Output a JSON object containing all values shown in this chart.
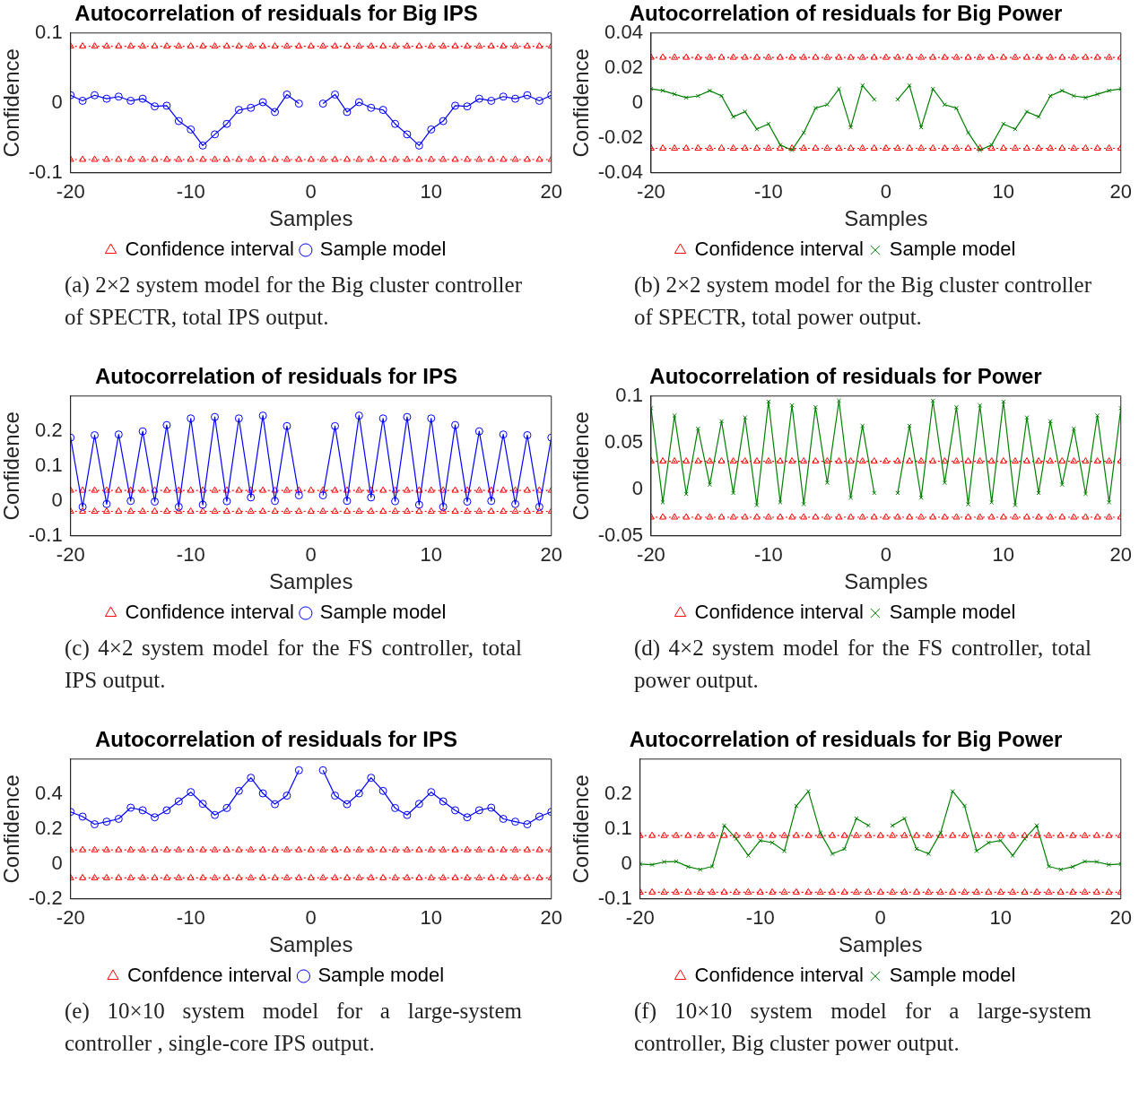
{
  "chart_data": [
    {
      "type": "line",
      "title": "Autocorrelation of residuals for Big IPS",
      "xlabel": "Samples",
      "ylabel": "Confidence",
      "x": [
        -20,
        -19,
        -18,
        -17,
        -16,
        -15,
        -14,
        -13,
        -12,
        -11,
        -10,
        -9,
        -8,
        -7,
        -6,
        -5,
        -4,
        -3,
        -2,
        -1,
        0,
        1,
        2,
        3,
        4,
        5,
        6,
        7,
        8,
        9,
        10,
        11,
        12,
        13,
        14,
        15,
        16,
        17,
        18,
        19,
        20
      ],
      "xlim": [
        -20,
        20
      ],
      "xticks": [
        -20,
        -10,
        0,
        10,
        20
      ],
      "ylim": [
        -0.1,
        0.1
      ],
      "yticks": [
        -0.1,
        0,
        0.1
      ],
      "grid": false,
      "legend": "bottom",
      "annotations": [
        "(a) 2×2 system model for the Big cluster controller of SPECTR, total IPS output."
      ],
      "series": [
        {
          "name": "Confidence interval",
          "color": "#ff0000",
          "marker": "triangle",
          "line_style": "dotted",
          "values": [
            -0.081,
            -0.081,
            -0.081,
            -0.081,
            -0.081,
            -0.081,
            -0.081,
            -0.081,
            -0.081,
            -0.081,
            -0.081,
            -0.081,
            -0.081,
            -0.081,
            -0.081,
            -0.081,
            -0.081,
            -0.081,
            -0.081,
            -0.081,
            -0.081,
            -0.081,
            -0.081,
            -0.081,
            -0.081,
            -0.081,
            -0.081,
            -0.081,
            -0.081,
            -0.081,
            -0.081,
            -0.081,
            -0.081,
            -0.081,
            -0.081,
            -0.081,
            -0.081,
            -0.081,
            -0.081,
            -0.081,
            -0.081
          ]
        },
        {
          "color": "#ff0000",
          "marker": "triangle",
          "line_style": "dotted",
          "values": [
            0.081,
            0.081,
            0.081,
            0.081,
            0.081,
            0.081,
            0.081,
            0.081,
            0.081,
            0.081,
            0.081,
            0.081,
            0.081,
            0.081,
            0.081,
            0.081,
            0.081,
            0.081,
            0.081,
            0.081,
            0.081,
            0.081,
            0.081,
            0.081,
            0.081,
            0.081,
            0.081,
            0.081,
            0.081,
            0.081,
            0.081,
            0.081,
            0.081,
            0.081,
            0.081,
            0.081,
            0.081,
            0.081,
            0.081,
            0.081,
            0.081
          ]
        },
        {
          "name": "Sample model",
          "color": "#0000ff",
          "marker": "circle",
          "line_style": "solid",
          "values": [
            0.011,
            0.003,
            0.011,
            0.006,
            0.009,
            0.003,
            0.006,
            -0.005,
            -0.004,
            -0.026,
            -0.038,
            -0.061,
            -0.045,
            -0.03,
            -0.01,
            -0.007,
            0.001,
            -0.013,
            0.012,
            -0.001,
            null,
            -0.001,
            0.012,
            -0.013,
            0.001,
            -0.007,
            -0.01,
            -0.03,
            -0.045,
            -0.061,
            -0.038,
            -0.026,
            -0.004,
            -0.005,
            0.006,
            0.003,
            0.009,
            0.006,
            0.011,
            0.003,
            0.011
          ]
        }
      ]
    },
    {
      "type": "line",
      "title": "Autocorrelation of residuals for Big Power",
      "xlabel": "Samples",
      "ylabel": "Confidence",
      "x": [
        -20,
        -19,
        -18,
        -17,
        -16,
        -15,
        -14,
        -13,
        -12,
        -11,
        -10,
        -9,
        -8,
        -7,
        -6,
        -5,
        -4,
        -3,
        -2,
        -1,
        0,
        1,
        2,
        3,
        4,
        5,
        6,
        7,
        8,
        9,
        10,
        11,
        12,
        13,
        14,
        15,
        16,
        17,
        18,
        19,
        20
      ],
      "xlim": [
        -20,
        20
      ],
      "xticks": [
        -20,
        -10,
        0,
        10,
        20
      ],
      "ylim": [
        -0.04,
        0.04
      ],
      "yticks": [
        -0.04,
        -0.02,
        0,
        0.02,
        0.04
      ],
      "grid": false,
      "legend": "bottom",
      "annotations": [
        "(b) 2×2 system model for the Big cluster controller of SPECTR, total power output."
      ],
      "series": [
        {
          "name": "Confidence interval",
          "color": "#ff0000",
          "marker": "triangle",
          "line_style": "dotted",
          "values": [
            -0.026,
            -0.026,
            -0.026,
            -0.026,
            -0.026,
            -0.026,
            -0.026,
            -0.026,
            -0.026,
            -0.026,
            -0.026,
            -0.026,
            -0.026,
            -0.026,
            -0.026,
            -0.026,
            -0.026,
            -0.026,
            -0.026,
            -0.026,
            -0.026,
            -0.026,
            -0.026,
            -0.026,
            -0.026,
            -0.026,
            -0.026,
            -0.026,
            -0.026,
            -0.026,
            -0.026,
            -0.026,
            -0.026,
            -0.026,
            -0.026,
            -0.026,
            -0.026,
            -0.026,
            -0.026,
            -0.026,
            -0.026
          ]
        },
        {
          "color": "#ff0000",
          "marker": "triangle",
          "line_style": "dotted",
          "values": [
            0.026,
            0.026,
            0.026,
            0.026,
            0.026,
            0.026,
            0.026,
            0.026,
            0.026,
            0.026,
            0.026,
            0.026,
            0.026,
            0.026,
            0.026,
            0.026,
            0.026,
            0.026,
            0.026,
            0.026,
            0.026,
            0.026,
            0.026,
            0.026,
            0.026,
            0.026,
            0.026,
            0.026,
            0.026,
            0.026,
            0.026,
            0.026,
            0.026,
            0.026,
            0.026,
            0.026,
            0.026,
            0.026,
            0.026,
            0.026,
            0.026
          ]
        },
        {
          "name": "Sample model",
          "color": "#008000",
          "marker": "cross",
          "line_style": "solid",
          "values": [
            0.008,
            0.007,
            0.005,
            0.003,
            0.004,
            0.007,
            0.004,
            -0.008,
            -0.005,
            -0.015,
            -0.012,
            -0.024,
            -0.027,
            -0.017,
            -0.003,
            -0.001,
            0.008,
            -0.014,
            0.01,
            0.002,
            null,
            0.002,
            0.01,
            -0.014,
            0.008,
            -0.001,
            -0.003,
            -0.017,
            -0.027,
            -0.024,
            -0.012,
            -0.015,
            -0.005,
            -0.008,
            0.004,
            0.007,
            0.004,
            0.003,
            0.005,
            0.007,
            0.008
          ]
        }
      ]
    },
    {
      "type": "line",
      "title": "Autocorrelation of residuals for IPS",
      "xlabel": "Samples",
      "ylabel": "Confidence",
      "x": [
        -20,
        -19,
        -18,
        -17,
        -16,
        -15,
        -14,
        -13,
        -12,
        -11,
        -10,
        -9,
        -8,
        -7,
        -6,
        -5,
        -4,
        -3,
        -2,
        -1,
        0,
        1,
        2,
        3,
        4,
        5,
        6,
        7,
        8,
        9,
        10,
        11,
        12,
        13,
        14,
        15,
        16,
        17,
        18,
        19,
        20
      ],
      "xlim": [
        -20,
        20
      ],
      "xticks": [
        -20,
        -10,
        0,
        10,
        20
      ],
      "ylim": [
        -0.1,
        0.3
      ],
      "yticks": [
        -0.1,
        0,
        0.1,
        0.2
      ],
      "grid": false,
      "legend": "bottom",
      "annotations": [
        "(c) 4×2 system model for the FS controller, total IPS output."
      ],
      "series": [
        {
          "name": "Confidence interval",
          "color": "#ff0000",
          "marker": "triangle",
          "line_style": "dotted",
          "values": [
            -0.03,
            -0.03,
            -0.03,
            -0.03,
            -0.03,
            -0.03,
            -0.03,
            -0.03,
            -0.03,
            -0.03,
            -0.03,
            -0.03,
            -0.03,
            -0.03,
            -0.03,
            -0.03,
            -0.03,
            -0.03,
            -0.03,
            -0.03,
            -0.03,
            -0.03,
            -0.03,
            -0.03,
            -0.03,
            -0.03,
            -0.03,
            -0.03,
            -0.03,
            -0.03,
            -0.03,
            -0.03,
            -0.03,
            -0.03,
            -0.03,
            -0.03,
            -0.03,
            -0.03,
            -0.03,
            -0.03,
            -0.03
          ]
        },
        {
          "color": "#ff0000",
          "marker": "triangle",
          "line_style": "dotted",
          "values": [
            0.03,
            0.03,
            0.03,
            0.03,
            0.03,
            0.03,
            0.03,
            0.03,
            0.03,
            0.03,
            0.03,
            0.03,
            0.03,
            0.03,
            0.03,
            0.03,
            0.03,
            0.03,
            0.03,
            0.03,
            0.03,
            0.03,
            0.03,
            0.03,
            0.03,
            0.03,
            0.03,
            0.03,
            0.03,
            0.03,
            0.03,
            0.03,
            0.03,
            0.03,
            0.03,
            0.03,
            0.03,
            0.03,
            0.03,
            0.03,
            0.03
          ]
        },
        {
          "name": "Sample model",
          "color": "#0000ff",
          "marker": "circle",
          "line_style": "solid",
          "values": [
            0.181,
            -0.017,
            0.188,
            -0.009,
            0.19,
            0.0,
            0.199,
            -0.002,
            0.217,
            -0.017,
            0.236,
            -0.011,
            0.24,
            -0.001,
            0.236,
            0.01,
            0.244,
            0.0,
            0.214,
            0.016,
            null,
            0.016,
            0.214,
            0.0,
            0.244,
            0.01,
            0.236,
            -0.001,
            0.24,
            -0.011,
            0.236,
            -0.017,
            0.217,
            -0.002,
            0.199,
            0.0,
            0.19,
            -0.009,
            0.188,
            -0.017,
            0.181
          ]
        }
      ]
    },
    {
      "type": "line",
      "title": "Autocorrelation of residuals for Power",
      "xlabel": "Samples",
      "ylabel": "Confidence",
      "x": [
        -20,
        -19,
        -18,
        -17,
        -16,
        -15,
        -14,
        -13,
        -12,
        -11,
        -10,
        -9,
        -8,
        -7,
        -6,
        -5,
        -4,
        -3,
        -2,
        -1,
        0,
        1,
        2,
        3,
        4,
        5,
        6,
        7,
        8,
        9,
        10,
        11,
        12,
        13,
        14,
        15,
        16,
        17,
        18,
        19,
        20
      ],
      "xlim": [
        -20,
        20
      ],
      "xticks": [
        -20,
        -10,
        0,
        10,
        20
      ],
      "ylim": [
        -0.05,
        0.1
      ],
      "yticks": [
        -0.05,
        0,
        0.05,
        0.1
      ],
      "grid": false,
      "legend": "bottom",
      "annotations": [
        "(d) 4×2 system model for the FS controller, total power output."
      ],
      "series": [
        {
          "name": "Confidence interval",
          "color": "#ff0000",
          "marker": "triangle",
          "line_style": "dotted",
          "values": [
            -0.03,
            -0.03,
            -0.03,
            -0.03,
            -0.03,
            -0.03,
            -0.03,
            -0.03,
            -0.03,
            -0.03,
            -0.03,
            -0.03,
            -0.03,
            -0.03,
            -0.03,
            -0.03,
            -0.03,
            -0.03,
            -0.03,
            -0.03,
            -0.03,
            -0.03,
            -0.03,
            -0.03,
            -0.03,
            -0.03,
            -0.03,
            -0.03,
            -0.03,
            -0.03,
            -0.03,
            -0.03,
            -0.03,
            -0.03,
            -0.03,
            -0.03,
            -0.03,
            -0.03,
            -0.03,
            -0.03,
            -0.03
          ]
        },
        {
          "color": "#ff0000",
          "marker": "triangle",
          "line_style": "dotted",
          "values": [
            0.03,
            0.03,
            0.03,
            0.03,
            0.03,
            0.03,
            0.03,
            0.03,
            0.03,
            0.03,
            0.03,
            0.03,
            0.03,
            0.03,
            0.03,
            0.03,
            0.03,
            0.03,
            0.03,
            0.03,
            0.03,
            0.03,
            0.03,
            0.03,
            0.03,
            0.03,
            0.03,
            0.03,
            0.03,
            0.03,
            0.03,
            0.03,
            0.03,
            0.03,
            0.03,
            0.03,
            0.03,
            0.03,
            0.03,
            0.03,
            0.03
          ]
        },
        {
          "name": "Sample model",
          "color": "#008000",
          "marker": "cross",
          "line_style": "solid",
          "values": [
            0.087,
            -0.014,
            0.079,
            -0.005,
            0.065,
            0.005,
            0.073,
            -0.004,
            0.077,
            -0.017,
            0.094,
            -0.014,
            0.09,
            -0.016,
            0.088,
            0.007,
            0.095,
            -0.009,
            0.068,
            -0.004,
            null,
            -0.004,
            0.068,
            -0.009,
            0.095,
            0.007,
            0.088,
            -0.016,
            0.09,
            -0.014,
            0.094,
            -0.017,
            0.077,
            -0.004,
            0.073,
            0.005,
            0.065,
            -0.005,
            0.079,
            -0.014,
            0.087
          ]
        }
      ]
    },
    {
      "type": "line",
      "title": "Autocorrelation of residuals for IPS",
      "xlabel": "Samples",
      "ylabel": "Confidence",
      "x": [
        -20,
        -19,
        -18,
        -17,
        -16,
        -15,
        -14,
        -13,
        -12,
        -11,
        -10,
        -9,
        -8,
        -7,
        -6,
        -5,
        -4,
        -3,
        -2,
        -1,
        0,
        1,
        2,
        3,
        4,
        5,
        6,
        7,
        8,
        9,
        10,
        11,
        12,
        13,
        14,
        15,
        16,
        17,
        18,
        19,
        20
      ],
      "xlim": [
        -20,
        20
      ],
      "xticks": [
        -20,
        -10,
        0,
        10,
        20
      ],
      "ylim": [
        -0.2,
        0.6
      ],
      "yticks": [
        -0.2,
        0,
        0.2,
        0.4
      ],
      "grid": false,
      "legend": "bottom",
      "annotations": [
        "(e) 10×10 system model for a large-system controller , single-core IPS output."
      ],
      "series": [
        {
          "name": "Confdence interval",
          "color": "#ff0000",
          "marker": "triangle",
          "line_style": "dotted",
          "values": [
            -0.08,
            -0.08,
            -0.08,
            -0.08,
            -0.08,
            -0.08,
            -0.08,
            -0.08,
            -0.08,
            -0.08,
            -0.08,
            -0.08,
            -0.08,
            -0.08,
            -0.08,
            -0.08,
            -0.08,
            -0.08,
            -0.08,
            -0.08,
            -0.08,
            -0.08,
            -0.08,
            -0.08,
            -0.08,
            -0.08,
            -0.08,
            -0.08,
            -0.08,
            -0.08,
            -0.08,
            -0.08,
            -0.08,
            -0.08,
            -0.08,
            -0.08,
            -0.08,
            -0.08,
            -0.08,
            -0.08,
            -0.08
          ]
        },
        {
          "color": "#ff0000",
          "marker": "triangle",
          "line_style": "dotted",
          "values": [
            0.08,
            0.08,
            0.08,
            0.08,
            0.08,
            0.08,
            0.08,
            0.08,
            0.08,
            0.08,
            0.08,
            0.08,
            0.08,
            0.08,
            0.08,
            0.08,
            0.08,
            0.08,
            0.08,
            0.08,
            0.08,
            0.08,
            0.08,
            0.08,
            0.08,
            0.08,
            0.08,
            0.08,
            0.08,
            0.08,
            0.08,
            0.08,
            0.08,
            0.08,
            0.08,
            0.08,
            0.08,
            0.08,
            0.08,
            0.08,
            0.08
          ]
        },
        {
          "name": "Sample model",
          "color": "#0000ff",
          "marker": "circle",
          "line_style": "solid",
          "values": [
            0.298,
            0.271,
            0.227,
            0.242,
            0.258,
            0.322,
            0.307,
            0.267,
            0.307,
            0.358,
            0.411,
            0.344,
            0.28,
            0.32,
            0.418,
            0.493,
            0.404,
            0.342,
            0.391,
            0.536,
            null,
            0.536,
            0.391,
            0.342,
            0.404,
            0.493,
            0.418,
            0.32,
            0.28,
            0.344,
            0.411,
            0.358,
            0.307,
            0.267,
            0.307,
            0.322,
            0.258,
            0.242,
            0.227,
            0.271,
            0.298
          ]
        }
      ]
    },
    {
      "type": "line",
      "title": "Autocorrelation of residuals for Big Power",
      "xlabel": "Samples",
      "ylabel": "Confidence",
      "x": [
        -20,
        -19,
        -18,
        -17,
        -16,
        -15,
        -14,
        -13,
        -12,
        -11,
        -10,
        -9,
        -8,
        -7,
        -6,
        -5,
        -4,
        -3,
        -2,
        -1,
        0,
        1,
        2,
        3,
        4,
        5,
        6,
        7,
        8,
        9,
        10,
        11,
        12,
        13,
        14,
        15,
        16,
        17,
        18,
        19,
        20
      ],
      "xlim": [
        -20,
        20
      ],
      "xticks": [
        -20,
        -10,
        0,
        10,
        20
      ],
      "ylim": [
        -0.1,
        0.3
      ],
      "yticks": [
        -0.1,
        0,
        0.1,
        0.2
      ],
      "grid": false,
      "legend": "bottom",
      "annotations": [
        "(f) 10×10 system model for a large-system controller, Big cluster power output."
      ],
      "series": [
        {
          "name": "Confidence interval",
          "color": "#ff0000",
          "marker": "triangle",
          "line_style": "dotted",
          "values": [
            -0.081,
            -0.081,
            -0.081,
            -0.081,
            -0.081,
            -0.081,
            -0.081,
            -0.081,
            -0.081,
            -0.081,
            -0.081,
            -0.081,
            -0.081,
            -0.081,
            -0.081,
            -0.081,
            -0.081,
            -0.081,
            -0.081,
            -0.081,
            -0.081,
            -0.081,
            -0.081,
            -0.081,
            -0.081,
            -0.081,
            -0.081,
            -0.081,
            -0.081,
            -0.081,
            -0.081,
            -0.081,
            -0.081,
            -0.081,
            -0.081,
            -0.081,
            -0.081,
            -0.081,
            -0.081,
            -0.081,
            -0.081
          ]
        },
        {
          "color": "#ff0000",
          "marker": "triangle",
          "line_style": "dotted",
          "values": [
            0.081,
            0.081,
            0.081,
            0.081,
            0.081,
            0.081,
            0.081,
            0.081,
            0.081,
            0.081,
            0.081,
            0.081,
            0.081,
            0.081,
            0.081,
            0.081,
            0.081,
            0.081,
            0.081,
            0.081,
            0.081,
            0.081,
            0.081,
            0.081,
            0.081,
            0.081,
            0.081,
            0.081,
            0.081,
            0.081,
            0.081,
            0.081,
            0.081,
            0.081,
            0.081,
            0.081,
            0.081,
            0.081,
            0.081,
            0.081,
            0.081
          ]
        },
        {
          "name": "Sample model",
          "color": "#008000",
          "marker": "cross",
          "line_style": "solid",
          "values": [
            0.0,
            -0.002,
            0.006,
            0.007,
            -0.008,
            -0.016,
            -0.007,
            0.11,
            0.072,
            0.024,
            0.067,
            0.061,
            0.037,
            0.166,
            0.208,
            0.089,
            0.029,
            0.043,
            0.13,
            0.11,
            null,
            0.11,
            0.13,
            0.043,
            0.029,
            0.089,
            0.208,
            0.166,
            0.037,
            0.061,
            0.067,
            0.024,
            0.072,
            0.11,
            -0.007,
            -0.016,
            -0.008,
            0.007,
            0.006,
            -0.002,
            0.0
          ]
        }
      ]
    }
  ]
}
